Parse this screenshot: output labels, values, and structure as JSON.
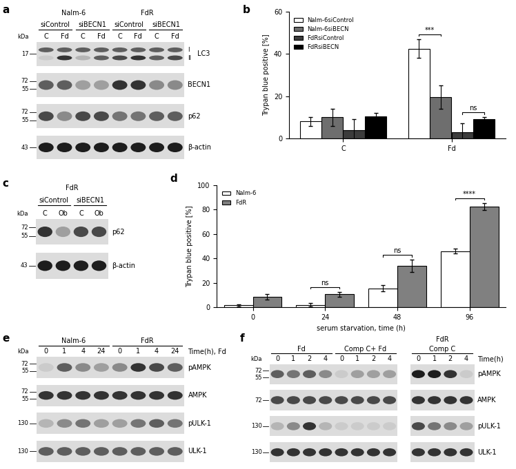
{
  "chart_data": [
    {
      "type": "bar",
      "panel_label": "b",
      "categories": [
        "C",
        "Fd"
      ],
      "series": [
        {
          "name": "Nalm-6siControl",
          "color": "#ffffff",
          "values": [
            8,
            42.5
          ],
          "errors": [
            2,
            4.5
          ]
        },
        {
          "name": "Nalm-6siBECN",
          "color": "#6e6e6e",
          "values": [
            10,
            19.5
          ],
          "errors": [
            4,
            5.5
          ]
        },
        {
          "name": "FdRsiControl",
          "color": "#3c3c3c",
          "values": [
            4,
            3
          ],
          "errors": [
            5,
            4
          ]
        },
        {
          "name": "FdRsiBECN",
          "color": "#000000",
          "values": [
            10.5,
            9
          ],
          "errors": [
            1.5,
            1
          ]
        }
      ],
      "ylabel": "Trypan blue positive [%]",
      "ylim": [
        0,
        60
      ],
      "yticks": [
        0,
        20,
        40,
        60
      ],
      "legend": "upper left",
      "grid": false,
      "annotations": [
        {
          "category": "Fd",
          "between": [
            "Nalm-6siControl",
            "Nalm-6siBECN"
          ],
          "text": "***"
        },
        {
          "category": "Fd",
          "between": [
            "FdRsiControl",
            "FdRsiBECN"
          ],
          "text": "ns"
        }
      ]
    },
    {
      "type": "bar",
      "panel_label": "d",
      "categories": [
        0,
        24,
        48,
        96
      ],
      "series": [
        {
          "name": "Nalm-6",
          "color": "#ffffff",
          "values": [
            1.5,
            2,
            15.5,
            46
          ],
          "errors": [
            1,
            1.5,
            2.5,
            2
          ]
        },
        {
          "name": "FdR",
          "color": "#808080",
          "values": [
            8.5,
            10.5,
            34,
            82.5
          ],
          "errors": [
            2,
            2,
            5,
            3
          ]
        }
      ],
      "xlabel": "serum starvation, time (h)",
      "ylabel": "Trypan blue positive [%]",
      "ylim": [
        0,
        100
      ],
      "yticks": [
        0,
        20,
        40,
        60,
        80,
        100
      ],
      "legend": "upper left",
      "grid": false,
      "annotations": [
        {
          "category": 24,
          "between": [
            "Nalm-6",
            "FdR"
          ],
          "text": "ns"
        },
        {
          "category": 48,
          "between": [
            "Nalm-6",
            "FdR"
          ],
          "text": "ns"
        },
        {
          "category": 96,
          "between": [
            "Nalm-6",
            "FdR"
          ],
          "text": "****"
        }
      ]
    }
  ],
  "blots": [
    {
      "panel_label": "a",
      "unit_label": "kDa",
      "rows": [
        {
          "name": "LC3",
          "markers": [
            17
          ],
          "band_labels": [
            "I",
            "II"
          ]
        },
        {
          "name": "BECN1",
          "markers": [
            72,
            55
          ]
        },
        {
          "name": "p62",
          "markers": [
            72,
            55
          ]
        },
        {
          "name": "β-actin",
          "markers": [
            43
          ]
        }
      ],
      "blocks": [
        {
          "groups": [
            {
              "name": "Nalm-6",
              "subgroups": [
                {
                  "name": "siControl",
                  "lanes": [
                    "C",
                    "Fd"
                  ]
                },
                {
                  "name": "siBECN1",
                  "lanes": [
                    "C",
                    "Fd"
                  ]
                }
              ]
            },
            {
              "name": "FdR",
              "subgroups": [
                {
                  "name": "siControl",
                  "lanes": [
                    "C",
                    "Fd"
                  ]
                },
                {
                  "name": "siBECN1",
                  "lanes": [
                    "C",
                    "Fd"
                  ]
                }
              ]
            }
          ],
          "intensity": [
            [
              [
                0.6,
                0.6,
                0.6,
                0.6,
                0.6,
                0.6,
                0.6,
                0.6
              ],
              [
                0.1,
                0.8,
                0.2,
                0.6,
                0.7,
                0.8,
                0.6,
                0.7
              ]
            ],
            [
              [
                0.6,
                0.6,
                0.3,
                0.3,
                0.8,
                0.8,
                0.4,
                0.4
              ]
            ],
            [
              [
                0.7,
                0.4,
                0.7,
                0.7,
                0.5,
                0.5,
                0.6,
                0.6
              ]
            ],
            [
              [
                0.9,
                0.9,
                0.9,
                0.9,
                0.9,
                0.9,
                0.9,
                0.9
              ]
            ]
          ]
        }
      ]
    },
    {
      "panel_label": "c",
      "unit_label": "kDa",
      "rows": [
        {
          "name": "p62",
          "markers": [
            72,
            55
          ]
        },
        {
          "name": "β-actin",
          "markers": [
            43
          ]
        }
      ],
      "blocks": [
        {
          "title": "FdR",
          "groups": [
            {
              "name": "siControl",
              "lanes": [
                "C",
                "Ob"
              ]
            },
            {
              "name": "siBECN1",
              "lanes": [
                "C",
                "Ob"
              ]
            }
          ],
          "intensity": [
            [
              [
                0.8,
                0.3,
                0.7,
                0.7
              ]
            ],
            [
              [
                0.9,
                0.9,
                0.9,
                0.9
              ]
            ]
          ]
        }
      ]
    },
    {
      "panel_label": "e",
      "unit_label": "kDa",
      "side_label": "Time(h), Fd",
      "rows": [
        {
          "name": "pAMPK",
          "markers": [
            72,
            55
          ]
        },
        {
          "name": "AMPK",
          "markers": [
            72,
            55
          ]
        },
        {
          "name": "pULK-1",
          "markers": [
            130
          ]
        },
        {
          "name": "ULK-1",
          "markers": [
            130
          ]
        }
      ],
      "blocks": [
        {
          "groups": [
            {
              "name": "Nalm-6",
              "lanes": [
                0,
                1,
                4,
                24
              ]
            },
            {
              "name": "FdR",
              "lanes": [
                0,
                1,
                4,
                24
              ]
            }
          ],
          "intensity": [
            [
              [
                0.1,
                0.6,
                0.4,
                0.3,
                0.4,
                0.8,
                0.7,
                0.6
              ]
            ],
            [
              [
                0.8,
                0.8,
                0.8,
                0.8,
                0.8,
                0.8,
                0.8,
                0.8
              ]
            ],
            [
              [
                0.2,
                0.4,
                0.5,
                0.3,
                0.3,
                0.5,
                0.6,
                0.5
              ]
            ],
            [
              [
                0.6,
                0.6,
                0.6,
                0.6,
                0.6,
                0.6,
                0.6,
                0.6
              ]
            ]
          ]
        }
      ]
    },
    {
      "panel_label": "f",
      "unit_label": "kDa",
      "side_label": "Time(h)",
      "rows": [
        {
          "name": "pAMPK",
          "markers": [
            72,
            55
          ]
        },
        {
          "name": "AMPK",
          "markers": [
            72
          ]
        },
        {
          "name": "pULK-1",
          "markers": [
            130
          ]
        },
        {
          "name": "ULK-1",
          "markers": [
            130
          ]
        }
      ],
      "blocks": [
        {
          "groups": [
            {
              "name": "Fd",
              "lanes": [
                0,
                1,
                2,
                4
              ]
            },
            {
              "name": "Comp C+ Fd",
              "lanes": [
                0,
                1,
                2,
                4
              ]
            }
          ],
          "intensity": [
            [
              [
                0.6,
                0.5,
                0.6,
                0.4,
                0.1,
                0.3,
                0.3,
                0.3
              ]
            ],
            [
              [
                0.7,
                0.7,
                0.7,
                0.7,
                0.7,
                0.7,
                0.7,
                0.7
              ]
            ],
            [
              [
                0.2,
                0.4,
                0.8,
                0.2,
                0.1,
                0.1,
                0.1,
                0.1
              ]
            ],
            [
              [
                0.8,
                0.8,
                0.8,
                0.8,
                0.8,
                0.8,
                0.8,
                0.8
              ]
            ]
          ]
        },
        {
          "title": "FdR",
          "groups": [
            {
              "name": "Comp C",
              "lanes": [
                0,
                1,
                2,
                4
              ]
            }
          ],
          "intensity": [
            [
              [
                0.9,
                0.9,
                0.8,
                0.1
              ]
            ],
            [
              [
                0.8,
                0.8,
                0.8,
                0.8
              ]
            ],
            [
              [
                0.7,
                0.5,
                0.4,
                0.3
              ]
            ],
            [
              [
                0.8,
                0.8,
                0.8,
                0.8
              ]
            ]
          ]
        }
      ]
    }
  ]
}
